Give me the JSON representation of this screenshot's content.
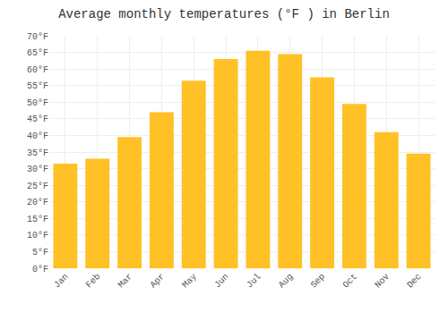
{
  "chart_data": {
    "type": "bar",
    "title": "Average monthly temperatures (°F ) in Berlin",
    "categories": [
      "Jan",
      "Feb",
      "Mar",
      "Apr",
      "May",
      "Jun",
      "Jul",
      "Aug",
      "Sep",
      "Oct",
      "Nov",
      "Dec"
    ],
    "values": [
      31.5,
      33.0,
      39.5,
      47.0,
      56.5,
      63.0,
      65.5,
      64.5,
      57.5,
      49.5,
      41.0,
      34.5
    ],
    "color": "#FFC125",
    "ylim": [
      0,
      70
    ],
    "yticks": [
      {
        "value": 0,
        "label": "0°F"
      },
      {
        "value": 5,
        "label": "5°F"
      },
      {
        "value": 10,
        "label": "10°F"
      },
      {
        "value": 15,
        "label": "15°F"
      },
      {
        "value": 20,
        "label": "20°F"
      },
      {
        "value": 25,
        "label": "25°F"
      },
      {
        "value": 30,
        "label": "30°F"
      },
      {
        "value": 35,
        "label": "35°F"
      },
      {
        "value": 40,
        "label": "40°F"
      },
      {
        "value": 45,
        "label": "45°F"
      },
      {
        "value": 50,
        "label": "50°F"
      },
      {
        "value": 55,
        "label": "55°F"
      },
      {
        "value": 60,
        "label": "60°F"
      },
      {
        "value": 65,
        "label": "65°F"
      },
      {
        "value": 70,
        "label": "70°F"
      }
    ],
    "grid": true
  }
}
